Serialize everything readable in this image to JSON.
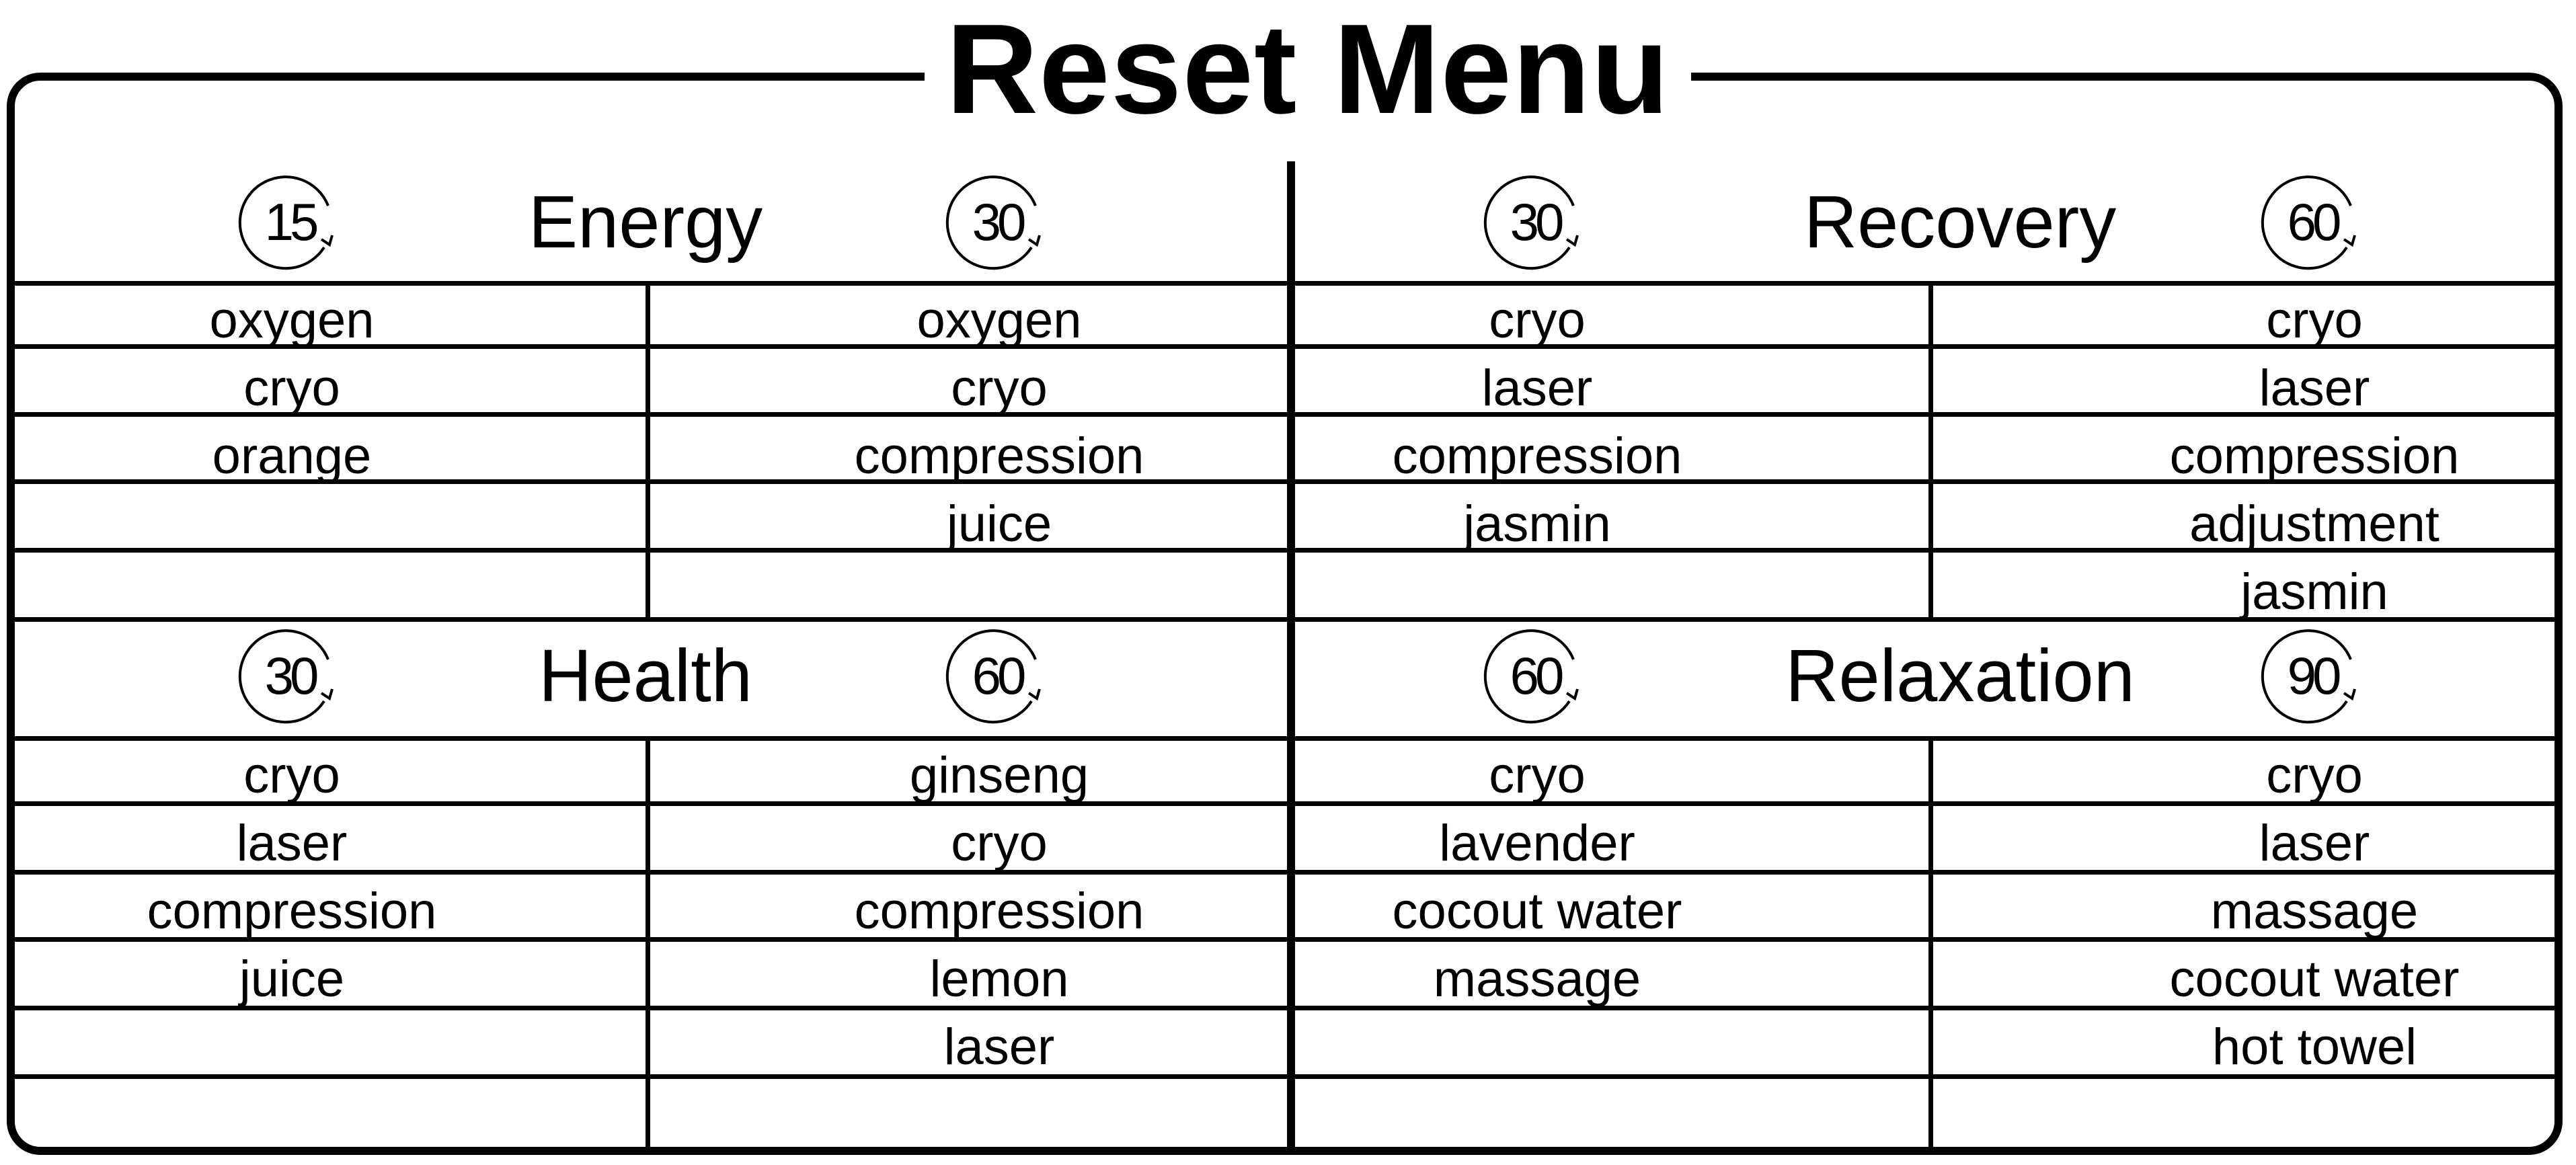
{
  "title": "Reset Menu",
  "sections": [
    {
      "name": "Energy",
      "options": [
        {
          "duration": "15",
          "items": [
            "oxygen",
            "cryo",
            "orange"
          ]
        },
        {
          "duration": "30",
          "items": [
            "oxygen",
            "cryo",
            "compression",
            "juice"
          ]
        }
      ]
    },
    {
      "name": "Recovery",
      "options": [
        {
          "duration": "30",
          "items": [
            "cryo",
            "laser",
            "compression",
            "jasmin"
          ]
        },
        {
          "duration": "60",
          "items": [
            "cryo",
            "laser",
            "compression",
            "adjustment",
            "jasmin"
          ]
        }
      ]
    },
    {
      "name": "Health",
      "options": [
        {
          "duration": "30",
          "items": [
            "cryo",
            "laser",
            "compression",
            "juice"
          ]
        },
        {
          "duration": "60",
          "items": [
            "ginseng",
            "cryo",
            "compression",
            "lemon",
            "laser"
          ]
        }
      ]
    },
    {
      "name": "Relaxation",
      "options": [
        {
          "duration": "60",
          "items": [
            "cryo",
            "lavender",
            "cocout water",
            "massage"
          ]
        },
        {
          "duration": "90",
          "items": [
            "cryo",
            "laser",
            "massage",
            "cocout water",
            "hot towel"
          ]
        }
      ]
    }
  ]
}
